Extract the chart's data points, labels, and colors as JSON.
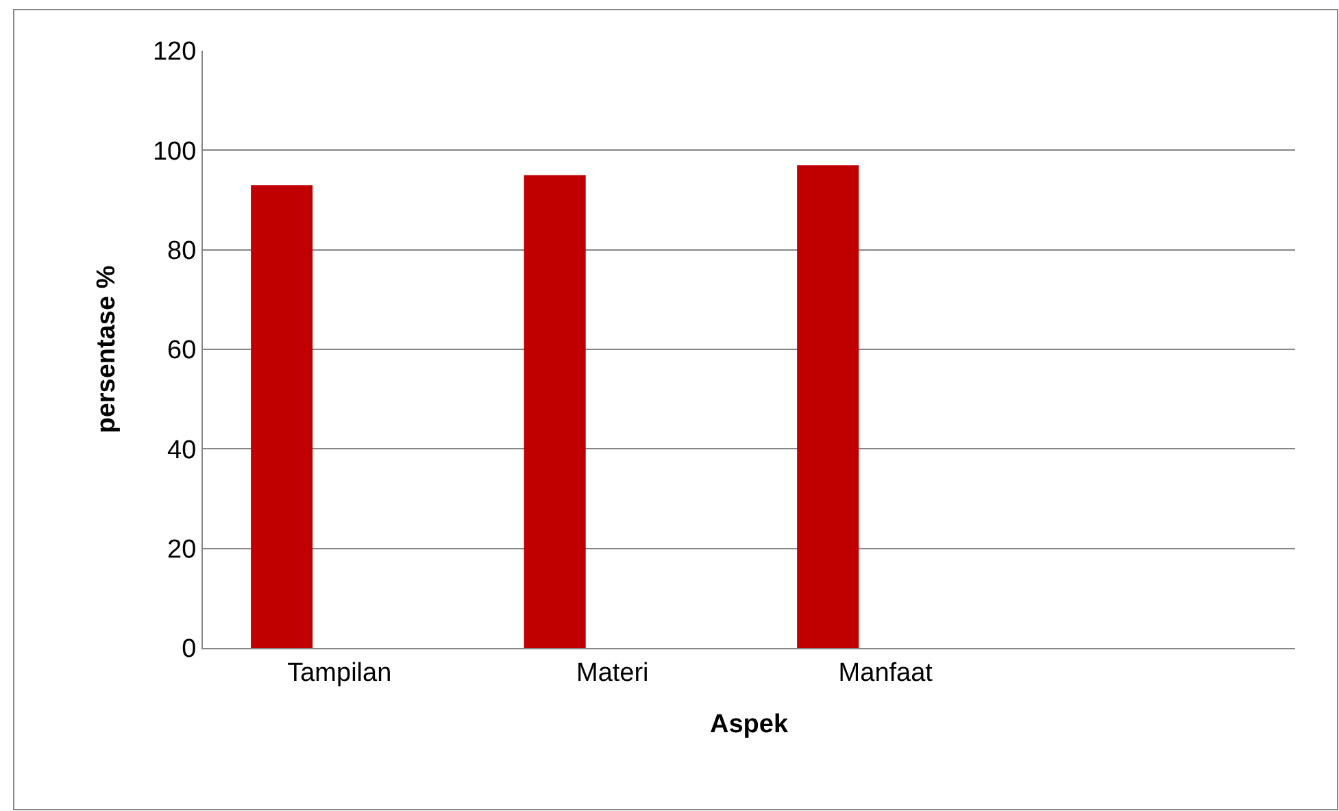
{
  "chart_data": {
    "type": "bar",
    "categories": [
      "Tampilan",
      "Materi",
      "Manfaat",
      null
    ],
    "values": [
      93,
      95,
      97,
      null
    ],
    "color": "#c00000",
    "xlabel": "Aspek",
    "ylabel": "persentase %",
    "ylim": [
      0,
      120
    ],
    "yticks": [
      0,
      20,
      40,
      60,
      80,
      100,
      120
    ],
    "grid": "y"
  }
}
